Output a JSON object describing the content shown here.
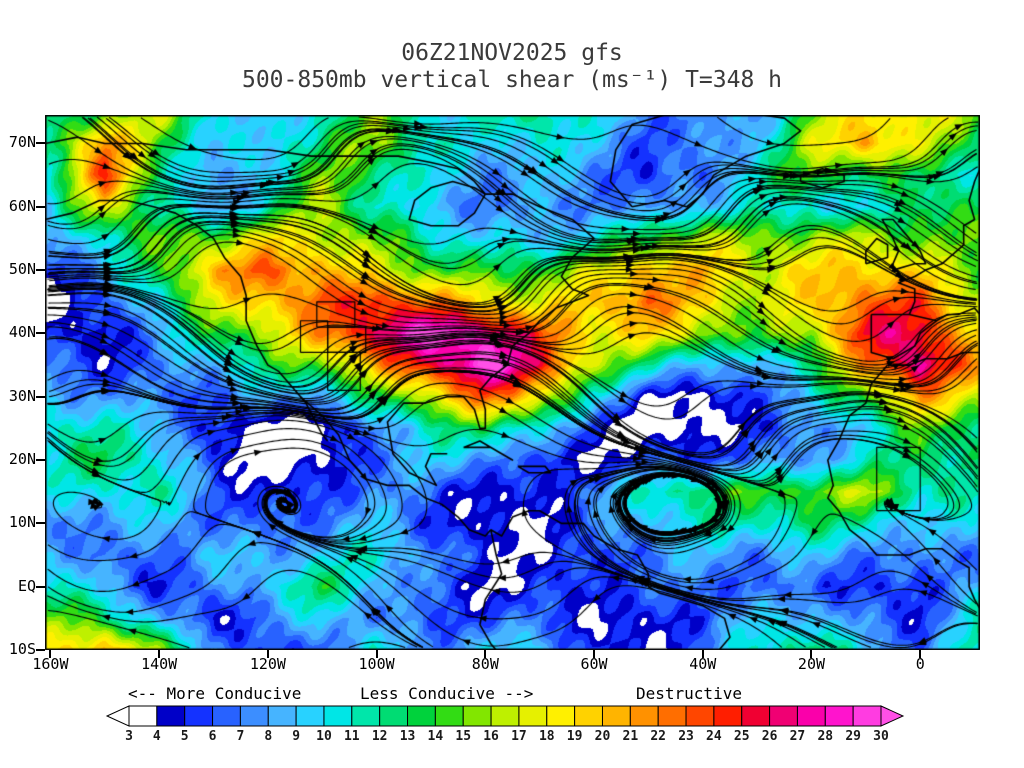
{
  "header": {
    "line1": "06Z21NOV2025 gfs",
    "line2": "500-850mb vertical shear (ms⁻¹) T=348 h"
  },
  "legend": {
    "more": "<-- More Conducive",
    "less": "Less Conducive -->",
    "destructive": "Destructive"
  },
  "axes": {
    "lat_ticks": [
      "70N",
      "60N",
      "50N",
      "40N",
      "30N",
      "20N",
      "10N",
      "EQ",
      "10S"
    ],
    "lat_values": [
      70,
      60,
      50,
      40,
      30,
      20,
      10,
      0,
      -10
    ],
    "lon_ticks": [
      "160W",
      "140W",
      "120W",
      "100W",
      "80W",
      "60W",
      "40W",
      "20W",
      "0"
    ],
    "lon_values": [
      -160,
      -140,
      -120,
      -100,
      -80,
      -60,
      -40,
      -20,
      0
    ]
  },
  "chart_data": {
    "type": "heatmap",
    "run": "06Z21NOV2025 gfs",
    "variable": "500-850mb vertical shear",
    "units": "ms⁻¹",
    "forecast_hour": 348,
    "lon_range": [
      -161,
      11
    ],
    "lat_range": [
      -10,
      74.5
    ],
    "overlay": "wind streamlines with arrowheads, coastlines, region boxes",
    "colorbar": {
      "labels": [
        3,
        4,
        5,
        6,
        7,
        8,
        9,
        10,
        11,
        12,
        13,
        14,
        15,
        16,
        17,
        18,
        19,
        20,
        21,
        22,
        23,
        24,
        25,
        26,
        27,
        28,
        29,
        30
      ],
      "cell_colors": [
        "#ffffff",
        "#0000c8",
        "#1432ff",
        "#2862ff",
        "#3c8eff",
        "#46b4ff",
        "#28d2ff",
        "#00e6e6",
        "#00e6aa",
        "#00dc73",
        "#00d23c",
        "#32dc14",
        "#82e600",
        "#bef000",
        "#e6f000",
        "#fff000",
        "#ffd200",
        "#ffb400",
        "#ff9100",
        "#ff6e00",
        "#ff4600",
        "#ff1e00",
        "#f00032",
        "#f00073",
        "#fa00aa",
        "#ff14cd",
        "#ff3ce1"
      ],
      "under_color": "#ffffff",
      "over_color": "#ff50e6"
    },
    "grid": {
      "lons": [
        -160,
        -150,
        -140,
        -130,
        -120,
        -110,
        -100,
        -90,
        -80,
        -70,
        -60,
        -50,
        -40,
        -30,
        -20,
        -10,
        0,
        10
      ],
      "lats": [
        75,
        70,
        65,
        60,
        55,
        50,
        45,
        40,
        35,
        30,
        25,
        20,
        15,
        10,
        5,
        0,
        -5,
        -10
      ],
      "values": [
        [
          10,
          14,
          18,
          12,
          8,
          10,
          14,
          10,
          12,
          14,
          10,
          6,
          6,
          8,
          16,
          20,
          18,
          14
        ],
        [
          12,
          22,
          16,
          10,
          9,
          12,
          15,
          12,
          10,
          12,
          8,
          5,
          6,
          10,
          18,
          22,
          16,
          12
        ],
        [
          10,
          24,
          14,
          8,
          10,
          14,
          12,
          10,
          9,
          10,
          7,
          4,
          6,
          12,
          16,
          14,
          12,
          10
        ],
        [
          8,
          18,
          12,
          9,
          12,
          16,
          10,
          8,
          8,
          9,
          8,
          6,
          8,
          10,
          12,
          10,
          14,
          12
        ],
        [
          7,
          10,
          14,
          16,
          20,
          18,
          14,
          10,
          9,
          10,
          12,
          14,
          16,
          14,
          16,
          18,
          16,
          14
        ],
        [
          6,
          8,
          12,
          20,
          24,
          22,
          18,
          14,
          12,
          14,
          18,
          22,
          20,
          16,
          18,
          20,
          20,
          16
        ],
        [
          5,
          6,
          10,
          16,
          20,
          24,
          26,
          22,
          18,
          16,
          20,
          24,
          20,
          16,
          18,
          22,
          24,
          18
        ],
        [
          6,
          5,
          8,
          12,
          16,
          22,
          28,
          31,
          28,
          22,
          18,
          20,
          18,
          14,
          16,
          24,
          26,
          20
        ],
        [
          8,
          6,
          6,
          8,
          12,
          16,
          22,
          26,
          30,
          24,
          16,
          12,
          10,
          8,
          12,
          20,
          28,
          22
        ],
        [
          10,
          8,
          6,
          5,
          8,
          10,
          14,
          18,
          22,
          18,
          10,
          6,
          4,
          6,
          8,
          14,
          22,
          18
        ],
        [
          12,
          10,
          8,
          4,
          4,
          4,
          8,
          10,
          12,
          10,
          6,
          4,
          3,
          4,
          6,
          10,
          16,
          14
        ],
        [
          10,
          12,
          10,
          6,
          4,
          4,
          6,
          8,
          8,
          6,
          5,
          6,
          5,
          6,
          8,
          12,
          14,
          12
        ],
        [
          8,
          10,
          12,
          8,
          5,
          5,
          6,
          6,
          5,
          6,
          8,
          10,
          12,
          14,
          16,
          18,
          12,
          10
        ],
        [
          6,
          8,
          10,
          8,
          6,
          6,
          8,
          6,
          5,
          5,
          6,
          8,
          10,
          12,
          14,
          12,
          8,
          8
        ],
        [
          8,
          6,
          8,
          10,
          8,
          8,
          10,
          8,
          6,
          5,
          5,
          6,
          8,
          8,
          10,
          8,
          6,
          6
        ],
        [
          10,
          8,
          6,
          8,
          10,
          12,
          8,
          6,
          5,
          6,
          6,
          5,
          6,
          6,
          8,
          6,
          5,
          8
        ],
        [
          14,
          12,
          8,
          6,
          8,
          10,
          6,
          5,
          6,
          8,
          5,
          4,
          5,
          8,
          10,
          8,
          6,
          10
        ],
        [
          18,
          20,
          14,
          8,
          6,
          8,
          10,
          6,
          8,
          10,
          6,
          5,
          6,
          10,
          12,
          10,
          8,
          12
        ]
      ]
    }
  },
  "map": {
    "coastlines": [
      [
        [
          -161,
          70
        ],
        [
          -155,
          71
        ],
        [
          -150,
          70
        ],
        [
          -143,
          70
        ],
        [
          -135,
          69
        ],
        [
          -128,
          69
        ],
        [
          -120,
          69
        ],
        [
          -112,
          68
        ],
        [
          -104,
          68
        ],
        [
          -96,
          68
        ],
        [
          -90,
          67
        ],
        [
          -85,
          66
        ],
        [
          -82,
          64
        ],
        [
          -80,
          62
        ]
      ],
      [
        [
          -161,
          58
        ],
        [
          -156,
          59
        ],
        [
          -151,
          61
        ],
        [
          -146,
          61
        ],
        [
          -141,
          60
        ],
        [
          -137,
          59
        ],
        [
          -133,
          57
        ],
        [
          -130,
          55
        ],
        [
          -128,
          52
        ],
        [
          -125,
          49
        ],
        [
          -124,
          46
        ],
        [
          -124,
          42
        ],
        [
          -122,
          38
        ],
        [
          -120,
          35
        ],
        [
          -118,
          34
        ],
        [
          -116,
          32
        ],
        [
          -113,
          29
        ],
        [
          -110,
          24
        ],
        [
          -109,
          23
        ]
      ],
      [
        [
          -114,
          30
        ],
        [
          -110,
          27
        ],
        [
          -107,
          24
        ],
        [
          -105,
          20
        ],
        [
          -102,
          17
        ],
        [
          -98,
          16
        ],
        [
          -94,
          16
        ],
        [
          -91,
          14
        ],
        [
          -88,
          13
        ],
        [
          -85,
          11
        ],
        [
          -83,
          9
        ],
        [
          -80,
          8
        ],
        [
          -79,
          9
        ]
      ],
      [
        [
          -87,
          21
        ],
        [
          -90,
          21
        ],
        [
          -91,
          19
        ],
        [
          -89,
          16
        ],
        [
          -94,
          18
        ],
        [
          -97,
          21
        ],
        [
          -98,
          26
        ],
        [
          -95,
          29
        ],
        [
          -91,
          29
        ],
        [
          -87,
          30
        ],
        [
          -84,
          30
        ],
        [
          -82,
          28
        ],
        [
          -81,
          25
        ],
        [
          -80,
          25
        ],
        [
          -80,
          28
        ],
        [
          -81,
          31
        ],
        [
          -79,
          33
        ],
        [
          -76,
          35
        ],
        [
          -75,
          38
        ],
        [
          -72,
          40
        ],
        [
          -70,
          42
        ],
        [
          -67,
          44
        ],
        [
          -64,
          45
        ],
        [
          -61,
          46
        ],
        [
          -64,
          47
        ],
        [
          -66,
          49
        ],
        [
          -64,
          52
        ],
        [
          -60,
          55
        ],
        [
          -64,
          58
        ],
        [
          -70,
          60
        ],
        [
          -75,
          62
        ],
        [
          -80,
          62
        ]
      ],
      [
        [
          -80,
          62
        ],
        [
          -82,
          59
        ],
        [
          -85,
          57
        ],
        [
          -90,
          57
        ],
        [
          -94,
          58
        ],
        [
          -93,
          61
        ],
        [
          -90,
          63
        ],
        [
          -86,
          64
        ],
        [
          -82,
          63
        ],
        [
          -80,
          62
        ]
      ],
      [
        [
          -53,
          60
        ],
        [
          -47,
          61
        ],
        [
          -43,
          60
        ],
        [
          -40,
          62
        ],
        [
          -38,
          65
        ],
        [
          -32,
          68
        ],
        [
          -25,
          70
        ],
        [
          -22,
          72
        ],
        [
          -25,
          74
        ],
        [
          -33,
          75
        ],
        [
          -45,
          75
        ],
        [
          -53,
          73
        ],
        [
          -56,
          69
        ],
        [
          -57,
          64
        ],
        [
          -53,
          60
        ]
      ],
      [
        [
          -22,
          64
        ],
        [
          -18,
          63
        ],
        [
          -14,
          64
        ],
        [
          -14,
          65
        ],
        [
          -18,
          66
        ],
        [
          -22,
          65
        ],
        [
          -22,
          64
        ]
      ],
      [
        [
          -5,
          50
        ],
        [
          -1,
          51
        ],
        [
          1,
          51
        ],
        [
          0,
          53
        ],
        [
          -1,
          54
        ],
        [
          -3,
          56
        ],
        [
          -5,
          58
        ],
        [
          -7,
          58
        ],
        [
          -5,
          55
        ],
        [
          -4,
          53
        ],
        [
          -5,
          51
        ],
        [
          -5,
          50
        ]
      ],
      [
        [
          -10,
          51
        ],
        [
          -6,
          52
        ],
        [
          -6,
          54
        ],
        [
          -8,
          55
        ],
        [
          -10,
          53
        ],
        [
          -10,
          51
        ]
      ],
      [
        [
          -9,
          43
        ],
        [
          -2,
          43
        ],
        [
          3,
          42
        ],
        [
          0,
          40
        ],
        [
          -1,
          38
        ],
        [
          -5,
          36
        ],
        [
          -9,
          37
        ],
        [
          -9,
          43
        ]
      ],
      [
        [
          -2,
          43
        ],
        [
          -1,
          45
        ],
        [
          -1,
          47
        ],
        [
          -4,
          48
        ],
        [
          -1,
          49
        ],
        [
          1,
          50
        ],
        [
          4,
          51
        ],
        [
          8,
          54
        ],
        [
          8,
          57
        ],
        [
          10,
          58
        ],
        [
          9,
          61
        ],
        [
          10,
          64
        ],
        [
          11,
          66
        ]
      ],
      [
        [
          3,
          42
        ],
        [
          5,
          43
        ],
        [
          7,
          43
        ],
        [
          10,
          44
        ],
        [
          11,
          43
        ]
      ],
      [
        [
          -6,
          35
        ],
        [
          -2,
          35
        ],
        [
          1,
          36
        ],
        [
          5,
          36
        ],
        [
          8,
          37
        ],
        [
          11,
          37
        ]
      ],
      [
        [
          -6,
          35
        ],
        [
          -9,
          32
        ],
        [
          -10,
          29
        ],
        [
          -13,
          27
        ],
        [
          -15,
          23
        ],
        [
          -17,
          20
        ],
        [
          -16,
          16
        ],
        [
          -17,
          14
        ],
        [
          -15,
          12
        ],
        [
          -13,
          9
        ],
        [
          -10,
          7
        ],
        [
          -8,
          5
        ],
        [
          -5,
          5
        ],
        [
          -2,
          5
        ],
        [
          1,
          6
        ],
        [
          4,
          6
        ],
        [
          7,
          4
        ],
        [
          9,
          3
        ],
        [
          9,
          0
        ],
        [
          10,
          -2
        ],
        [
          12,
          -5
        ],
        [
          13,
          -8
        ],
        [
          13,
          -10
        ]
      ],
      [
        [
          -84,
          22
        ],
        [
          -79,
          22
        ],
        [
          -75,
          20
        ],
        [
          -77,
          21
        ],
        [
          -81,
          23
        ],
        [
          -84,
          22
        ]
      ],
      [
        [
          -74,
          19
        ],
        [
          -69,
          19
        ],
        [
          -68,
          18
        ],
        [
          -72,
          18
        ],
        [
          -74,
          19
        ]
      ],
      [
        [
          -79,
          9
        ],
        [
          -77,
          8
        ],
        [
          -75,
          11
        ],
        [
          -72,
          12
        ],
        [
          -70,
          12
        ],
        [
          -66,
          10
        ],
        [
          -62,
          10
        ],
        [
          -60,
          8
        ],
        [
          -56,
          6
        ],
        [
          -52,
          5
        ],
        [
          -50,
          2
        ],
        [
          -50,
          0
        ],
        [
          -48,
          -1
        ],
        [
          -44,
          -2
        ],
        [
          -40,
          -3
        ],
        [
          -36,
          -5
        ],
        [
          -35,
          -8
        ],
        [
          -37,
          -10
        ]
      ],
      [
        [
          -79,
          9
        ],
        [
          -78,
          5
        ],
        [
          -77,
          2
        ],
        [
          -80,
          -2
        ],
        [
          -81,
          -6
        ],
        [
          -79,
          -9
        ],
        [
          -78,
          -10
        ]
      ]
    ],
    "boundaries": [
      [
        [
          -109,
          37
        ],
        [
          -102,
          37
        ],
        [
          -102,
          41
        ],
        [
          -109,
          41
        ],
        [
          -109,
          37
        ]
      ],
      [
        [
          -111,
          41
        ],
        [
          -104,
          41
        ],
        [
          -104,
          45
        ],
        [
          -111,
          45
        ],
        [
          -111,
          41
        ]
      ],
      [
        [
          -114,
          37
        ],
        [
          -109,
          37
        ],
        [
          -109,
          42
        ],
        [
          -114,
          42
        ],
        [
          -114,
          37
        ]
      ],
      [
        [
          -109,
          31
        ],
        [
          -103,
          31
        ],
        [
          -103,
          37
        ],
        [
          -109,
          37
        ],
        [
          -109,
          31
        ]
      ],
      [
        [
          -8,
          12
        ],
        [
          0,
          12
        ],
        [
          0,
          22
        ],
        [
          -8,
          22
        ],
        [
          -8,
          12
        ]
      ]
    ]
  }
}
